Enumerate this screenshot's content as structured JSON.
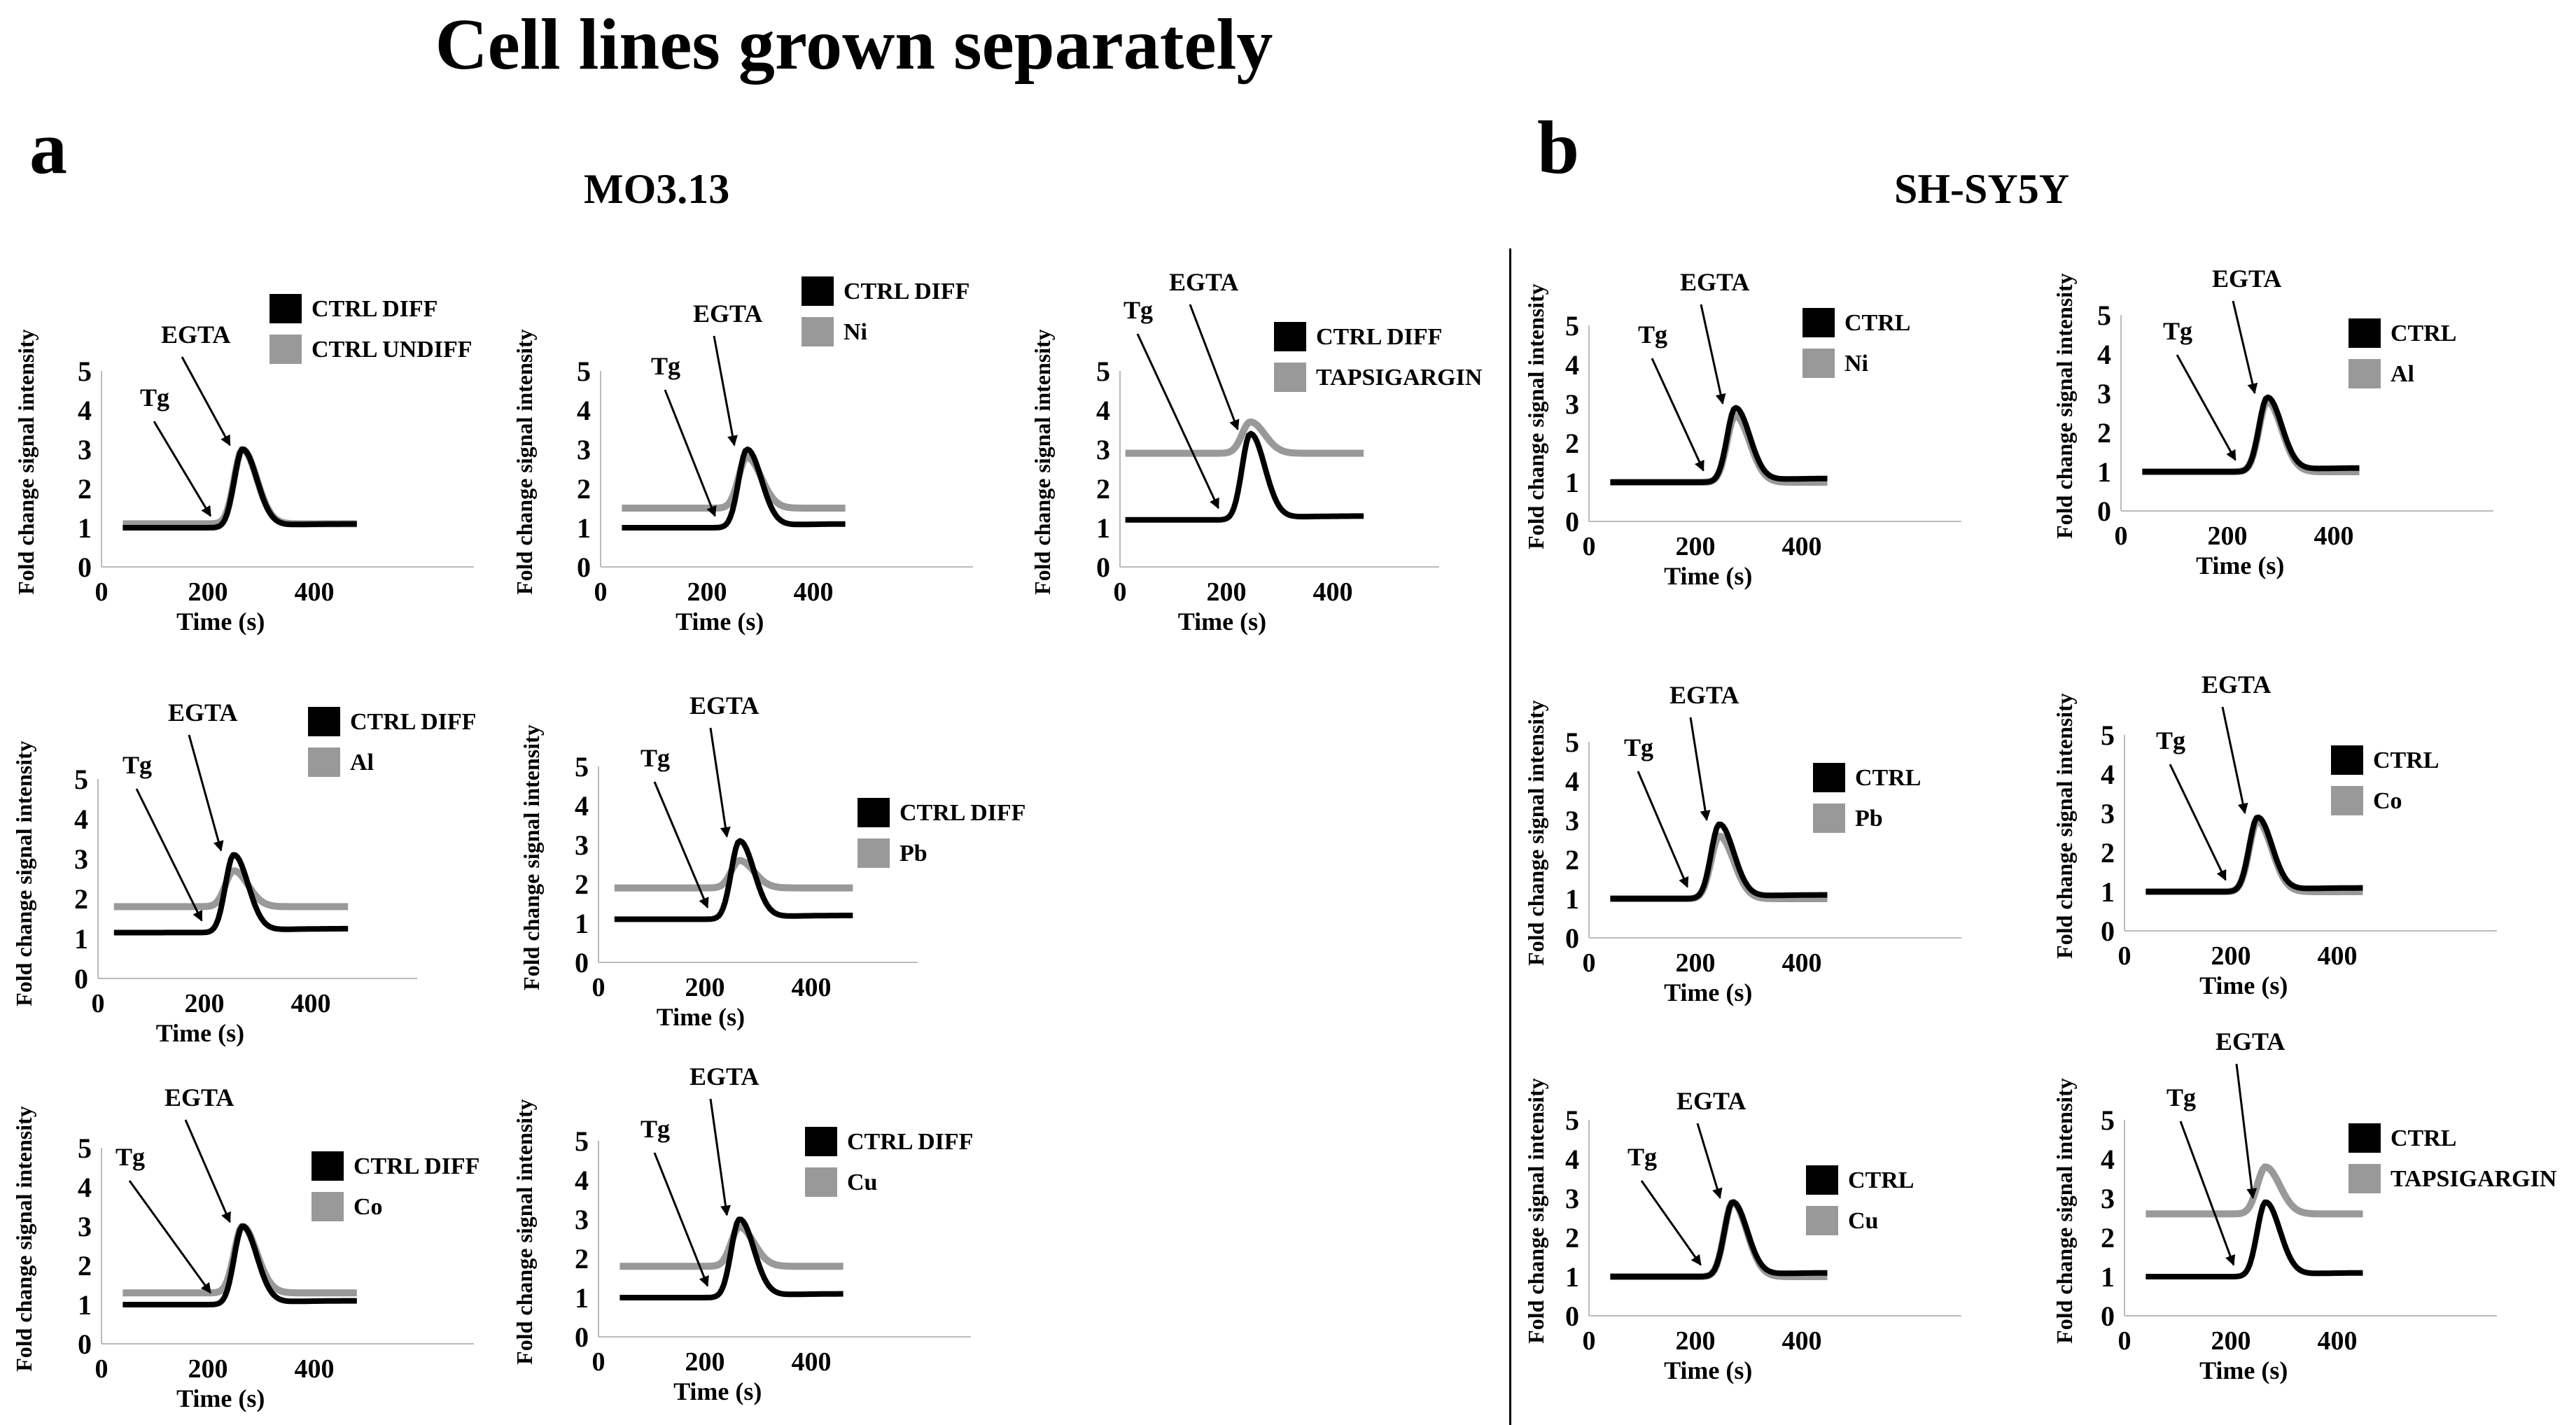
{
  "title": "Cell lines grown separately",
  "panels": [
    {
      "letter": "a",
      "cell_line": "MO3.13"
    },
    {
      "letter": "b",
      "cell_line": "SH-SY5Y"
    }
  ],
  "colors": {
    "ctrl": "#000000",
    "treatment": "#999999"
  },
  "chart_data": [
    {
      "type": "line",
      "panel": "a",
      "cell_line": "MO3.13",
      "xlabel": "Time (s)",
      "ylabel": "Fold change signal intensity",
      "xticks": [
        0,
        200,
        400
      ],
      "yticks": [
        0,
        1,
        2,
        3,
        4,
        5
      ],
      "xlim": [
        0,
        700
      ],
      "ylim": [
        0,
        5
      ],
      "annotations": [
        "Tg",
        "EGTA"
      ],
      "series": [
        {
          "name": "CTRL DIFF",
          "baseline": 1.0,
          "peak": 3.0
        },
        {
          "name": "CTRL UNDIFF",
          "baseline": 1.1,
          "peak": 3.0
        }
      ]
    },
    {
      "type": "line",
      "panel": "a",
      "cell_line": "MO3.13",
      "xlabel": "Time (s)",
      "ylabel": "Fold change signal intensity",
      "xticks": [
        0,
        200,
        400
      ],
      "yticks": [
        0,
        1,
        2,
        3,
        4,
        5
      ],
      "xlim": [
        0,
        700
      ],
      "ylim": [
        0,
        5
      ],
      "annotations": [
        "Tg",
        "EGTA"
      ],
      "series": [
        {
          "name": "CTRL DIFF",
          "baseline": 1.0,
          "peak": 3.0
        },
        {
          "name": "Ni",
          "baseline": 1.5,
          "peak": 2.8
        }
      ]
    },
    {
      "type": "line",
      "panel": "a",
      "cell_line": "MO3.13",
      "xlabel": "Time (s)",
      "ylabel": "Fold change signal intensity",
      "xticks": [
        0,
        200,
        400
      ],
      "yticks": [
        0,
        1,
        2,
        3,
        4,
        5
      ],
      "xlim": [
        0,
        600
      ],
      "ylim": [
        0,
        5
      ],
      "annotations": [
        "Tg",
        "EGTA"
      ],
      "series": [
        {
          "name": "CTRL DIFF",
          "baseline": 1.2,
          "peak": 3.4
        },
        {
          "name": "TAPSIGARGIN",
          "baseline": 2.9,
          "peak": 3.7
        }
      ]
    },
    {
      "type": "line",
      "panel": "a",
      "cell_line": "MO3.13",
      "xlabel": "Time (s)",
      "ylabel": "Fold change signal intensity",
      "xticks": [
        0,
        200,
        400
      ],
      "yticks": [
        0,
        1,
        2,
        3,
        4,
        5
      ],
      "xlim": [
        0,
        600
      ],
      "ylim": [
        0,
        5
      ],
      "annotations": [
        "Tg",
        "EGTA"
      ],
      "series": [
        {
          "name": "CTRL DIFF",
          "baseline": 1.15,
          "peak": 3.1
        },
        {
          "name": "Al",
          "baseline": 1.8,
          "peak": 2.7
        }
      ]
    },
    {
      "type": "line",
      "panel": "a",
      "cell_line": "MO3.13",
      "xlabel": "Time (s)",
      "ylabel": "Fold change signal intensity",
      "xticks": [
        0,
        200,
        400
      ],
      "yticks": [
        0,
        1,
        2,
        3,
        4,
        5
      ],
      "xlim": [
        0,
        600
      ],
      "ylim": [
        0,
        5
      ],
      "annotations": [
        "Tg",
        "EGTA"
      ],
      "series": [
        {
          "name": "CTRL DIFF",
          "baseline": 1.1,
          "peak": 3.1
        },
        {
          "name": "Pb",
          "baseline": 1.9,
          "peak": 2.6
        }
      ]
    },
    {
      "type": "line",
      "panel": "a",
      "cell_line": "MO3.13",
      "xlabel": "Time (s)",
      "ylabel": "Fold change signal intensity",
      "xticks": [
        0,
        200,
        400
      ],
      "yticks": [
        0,
        1,
        2,
        3,
        4,
        5
      ],
      "xlim": [
        0,
        700
      ],
      "ylim": [
        0,
        5
      ],
      "annotations": [
        "Tg",
        "EGTA"
      ],
      "series": [
        {
          "name": "CTRL DIFF",
          "baseline": 1.0,
          "peak": 3.0
        },
        {
          "name": "Co",
          "baseline": 1.3,
          "peak": 3.0
        }
      ]
    },
    {
      "type": "line",
      "panel": "a",
      "cell_line": "MO3.13",
      "xlabel": "Time (s)",
      "ylabel": "Fold change signal intensity",
      "xticks": [
        0,
        200,
        400
      ],
      "yticks": [
        0,
        1,
        2,
        3,
        4,
        5
      ],
      "xlim": [
        0,
        700
      ],
      "ylim": [
        0,
        5
      ],
      "annotations": [
        "Tg",
        "EGTA"
      ],
      "series": [
        {
          "name": "CTRL DIFF",
          "baseline": 1.0,
          "peak": 3.0
        },
        {
          "name": "Cu",
          "baseline": 1.8,
          "peak": 2.8
        }
      ]
    },
    {
      "type": "line",
      "panel": "b",
      "cell_line": "SH-SY5Y",
      "xlabel": "Time (s)",
      "ylabel": "Fold change signal intensity",
      "xticks": [
        0,
        200,
        400
      ],
      "yticks": [
        0,
        1,
        2,
        3,
        4,
        5
      ],
      "xlim": [
        0,
        700
      ],
      "ylim": [
        0,
        5
      ],
      "annotations": [
        "Tg",
        "EGTA"
      ],
      "series": [
        {
          "name": "CTRL",
          "baseline": 1.0,
          "peak": 2.9
        },
        {
          "name": "Ni",
          "baseline": 1.0,
          "peak": 2.7
        }
      ]
    },
    {
      "type": "line",
      "panel": "b",
      "cell_line": "SH-SY5Y",
      "xlabel": "Time (s)",
      "ylabel": "Fold change signal intensity",
      "xticks": [
        0,
        200,
        400
      ],
      "yticks": [
        0,
        1,
        2,
        3,
        4,
        5
      ],
      "xlim": [
        0,
        700
      ],
      "ylim": [
        0,
        5
      ],
      "annotations": [
        "Tg",
        "EGTA"
      ],
      "series": [
        {
          "name": "CTRL",
          "baseline": 1.0,
          "peak": 2.9
        },
        {
          "name": "Al",
          "baseline": 1.0,
          "peak": 2.8
        }
      ]
    },
    {
      "type": "line",
      "panel": "b",
      "cell_line": "SH-SY5Y",
      "xlabel": "Time (s)",
      "ylabel": "Fold change signal intensity",
      "xticks": [
        0,
        200,
        400
      ],
      "yticks": [
        0,
        1,
        2,
        3,
        4,
        5
      ],
      "xlim": [
        0,
        700
      ],
      "ylim": [
        0,
        5
      ],
      "annotations": [
        "Tg",
        "EGTA"
      ],
      "series": [
        {
          "name": "CTRL",
          "baseline": 1.0,
          "peak": 2.9
        },
        {
          "name": "Pb",
          "baseline": 1.0,
          "peak": 2.6
        }
      ]
    },
    {
      "type": "line",
      "panel": "b",
      "cell_line": "SH-SY5Y",
      "xlabel": "Time (s)",
      "ylabel": "Fold change signal intensity",
      "xticks": [
        0,
        200,
        400
      ],
      "yticks": [
        0,
        1,
        2,
        3,
        4,
        5
      ],
      "xlim": [
        0,
        700
      ],
      "ylim": [
        0,
        5
      ],
      "annotations": [
        "Tg",
        "EGTA"
      ],
      "series": [
        {
          "name": "CTRL",
          "baseline": 1.0,
          "peak": 2.9
        },
        {
          "name": "Co",
          "baseline": 1.0,
          "peak": 2.8
        }
      ]
    },
    {
      "type": "line",
      "panel": "b",
      "cell_line": "SH-SY5Y",
      "xlabel": "Time (s)",
      "ylabel": "Fold change signal intensity",
      "xticks": [
        0,
        200,
        400
      ],
      "yticks": [
        0,
        1,
        2,
        3,
        4,
        5
      ],
      "xlim": [
        0,
        700
      ],
      "ylim": [
        0,
        5
      ],
      "annotations": [
        "Tg",
        "EGTA"
      ],
      "series": [
        {
          "name": "CTRL",
          "baseline": 1.0,
          "peak": 2.9
        },
        {
          "name": "Cu",
          "baseline": 1.0,
          "peak": 2.9
        }
      ]
    },
    {
      "type": "line",
      "panel": "b",
      "cell_line": "SH-SY5Y",
      "xlabel": "Time (s)",
      "ylabel": "Fold change signal intensity",
      "xticks": [
        0,
        200,
        400
      ],
      "yticks": [
        0,
        1,
        2,
        3,
        4,
        5
      ],
      "xlim": [
        0,
        700
      ],
      "ylim": [
        0,
        5
      ],
      "annotations": [
        "Tg",
        "EGTA"
      ],
      "series": [
        {
          "name": "CTRL",
          "baseline": 1.0,
          "peak": 2.9
        },
        {
          "name": "TAPSIGARGIN",
          "baseline": 2.6,
          "peak": 3.8
        }
      ]
    }
  ]
}
